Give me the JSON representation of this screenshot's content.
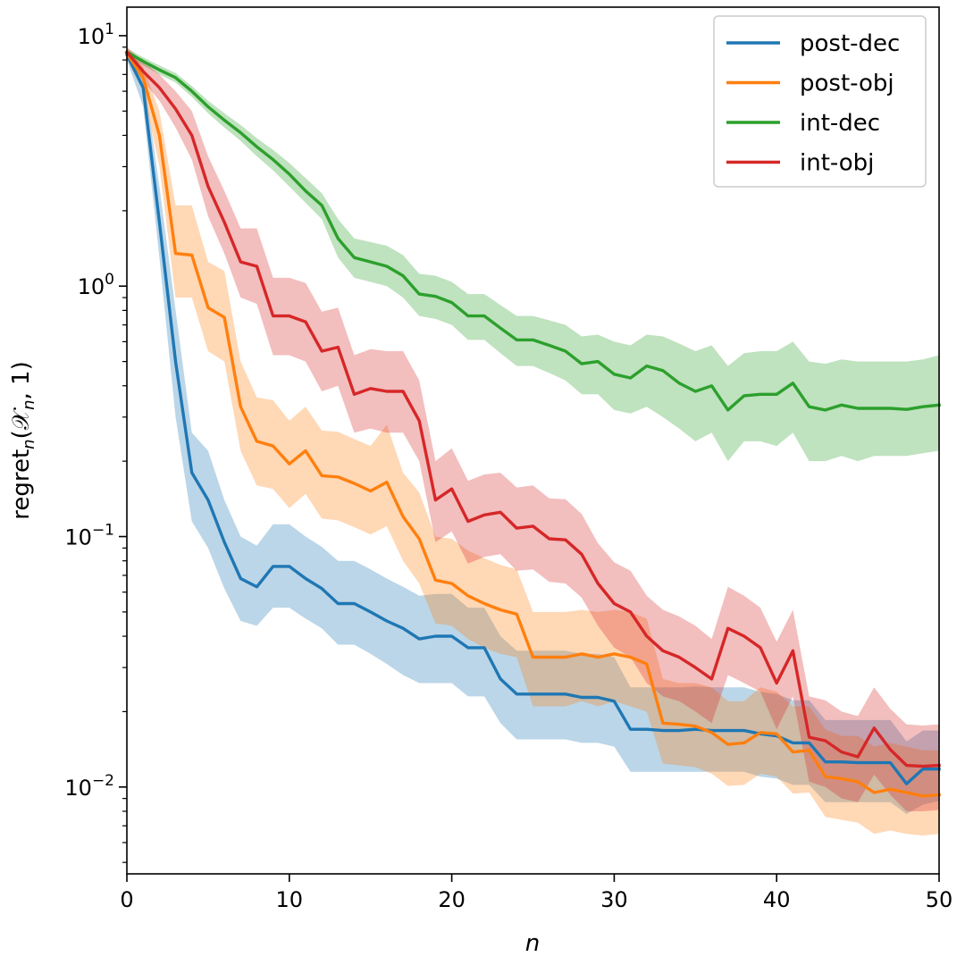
{
  "chart_data": {
    "type": "line",
    "title": "",
    "xlabel": "n",
    "ylabel": {
      "base": "regret",
      "sub": "n",
      "args": "(𝒳",
      "args_sub": "n",
      "tail": ", 1)"
    },
    "xlim": [
      0,
      50
    ],
    "ylim": [
      0.0045,
      13
    ],
    "yscale": "log",
    "grid": false,
    "legend_position": "top-right",
    "xticks": [
      0,
      10,
      20,
      30,
      40,
      50
    ],
    "xtick_labels": [
      "0",
      "10",
      "20",
      "30",
      "40",
      "50"
    ],
    "yticks": [
      0.01,
      0.1,
      1,
      10
    ],
    "ytick_labels": [
      {
        "base": "10",
        "exp": "−2"
      },
      {
        "base": "10",
        "exp": "−1"
      },
      {
        "base": "10",
        "exp": "0"
      },
      {
        "base": "10",
        "exp": "1"
      }
    ],
    "x": [
      0,
      1,
      2,
      3,
      4,
      5,
      6,
      7,
      8,
      9,
      10,
      11,
      12,
      13,
      14,
      15,
      16,
      17,
      18,
      19,
      20,
      21,
      22,
      23,
      24,
      25,
      26,
      27,
      28,
      29,
      30,
      31,
      32,
      33,
      34,
      35,
      36,
      37,
      38,
      39,
      40,
      41,
      42,
      43,
      44,
      45,
      46,
      47,
      48,
      49,
      50
    ],
    "series": [
      {
        "name": "post-dec",
        "color": "#1f77b4",
        "values": [
          8.4,
          6.2,
          1.8,
          0.5,
          0.18,
          0.14,
          0.095,
          0.068,
          0.063,
          0.076,
          0.076,
          0.068,
          0.062,
          0.054,
          0.054,
          0.05,
          0.046,
          0.043,
          0.039,
          0.04,
          0.04,
          0.036,
          0.036,
          0.027,
          0.0235,
          0.0235,
          0.0235,
          0.0235,
          0.0228,
          0.0228,
          0.022,
          0.017,
          0.017,
          0.0168,
          0.0168,
          0.017,
          0.0168,
          0.0168,
          0.0168,
          0.0163,
          0.016,
          0.015,
          0.015,
          0.0126,
          0.0126,
          0.0125,
          0.0125,
          0.0125,
          0.0103,
          0.0118,
          0.0118
        ],
        "lower": [
          8.0,
          5.2,
          1.3,
          0.3,
          0.115,
          0.09,
          0.062,
          0.046,
          0.044,
          0.052,
          0.052,
          0.047,
          0.043,
          0.037,
          0.037,
          0.034,
          0.031,
          0.028,
          0.026,
          0.026,
          0.026,
          0.023,
          0.023,
          0.018,
          0.0155,
          0.0155,
          0.0155,
          0.0155,
          0.015,
          0.015,
          0.0145,
          0.0115,
          0.0115,
          0.0115,
          0.0115,
          0.0115,
          0.0115,
          0.0115,
          0.0115,
          0.011,
          0.0108,
          0.0102,
          0.0102,
          0.0087,
          0.0087,
          0.0087,
          0.0087,
          0.0087,
          0.0078,
          0.0085,
          0.0088
        ],
        "upper": [
          8.8,
          7.2,
          2.5,
          0.8,
          0.26,
          0.22,
          0.14,
          0.1,
          0.092,
          0.112,
          0.112,
          0.1,
          0.091,
          0.08,
          0.08,
          0.074,
          0.068,
          0.063,
          0.058,
          0.059,
          0.059,
          0.052,
          0.052,
          0.04,
          0.035,
          0.035,
          0.035,
          0.035,
          0.034,
          0.034,
          0.033,
          0.025,
          0.025,
          0.025,
          0.025,
          0.0252,
          0.025,
          0.025,
          0.025,
          0.024,
          0.0235,
          0.0222,
          0.0222,
          0.0185,
          0.0185,
          0.0185,
          0.0185,
          0.0185,
          0.0152,
          0.0168,
          0.0168
        ]
      },
      {
        "name": "post-obj",
        "color": "#ff7f0e",
        "values": [
          8.5,
          6.8,
          4.0,
          1.35,
          1.33,
          0.82,
          0.75,
          0.33,
          0.24,
          0.23,
          0.195,
          0.22,
          0.175,
          0.173,
          0.163,
          0.152,
          0.165,
          0.12,
          0.098,
          0.067,
          0.065,
          0.058,
          0.054,
          0.051,
          0.049,
          0.033,
          0.033,
          0.033,
          0.034,
          0.033,
          0.034,
          0.033,
          0.031,
          0.018,
          0.0178,
          0.0175,
          0.0165,
          0.0148,
          0.015,
          0.0165,
          0.0163,
          0.0138,
          0.014,
          0.011,
          0.0108,
          0.0105,
          0.0095,
          0.0098,
          0.0095,
          0.0092,
          0.0093
        ],
        "lower": [
          8.1,
          6.0,
          3.0,
          0.9,
          0.9,
          0.55,
          0.5,
          0.22,
          0.16,
          0.155,
          0.13,
          0.148,
          0.118,
          0.116,
          0.109,
          0.102,
          0.11,
          0.08,
          0.065,
          0.045,
          0.044,
          0.039,
          0.036,
          0.034,
          0.033,
          0.021,
          0.021,
          0.021,
          0.022,
          0.021,
          0.022,
          0.021,
          0.02,
          0.0124,
          0.0122,
          0.012,
          0.0113,
          0.0101,
          0.0102,
          0.0113,
          0.011,
          0.0094,
          0.0095,
          0.0076,
          0.0074,
          0.0072,
          0.0065,
          0.0067,
          0.0065,
          0.0064,
          0.0065
        ],
        "upper": [
          8.9,
          7.5,
          5.0,
          2.1,
          2.1,
          1.25,
          1.15,
          0.5,
          0.36,
          0.35,
          0.29,
          0.33,
          0.265,
          0.262,
          0.245,
          0.23,
          0.28,
          0.18,
          0.15,
          0.1,
          0.098,
          0.088,
          0.082,
          0.077,
          0.074,
          0.05,
          0.05,
          0.05,
          0.051,
          0.05,
          0.051,
          0.05,
          0.047,
          0.027,
          0.026,
          0.026,
          0.025,
          0.022,
          0.022,
          0.025,
          0.024,
          0.021,
          0.021,
          0.017,
          0.016,
          0.016,
          0.0145,
          0.015,
          0.0145,
          0.014,
          0.014
        ]
      },
      {
        "name": "int-dec",
        "color": "#2ca02c",
        "values": [
          8.6,
          7.9,
          7.3,
          6.8,
          6.0,
          5.2,
          4.6,
          4.1,
          3.6,
          3.2,
          2.8,
          2.4,
          2.1,
          1.55,
          1.3,
          1.25,
          1.2,
          1.1,
          0.93,
          0.91,
          0.86,
          0.76,
          0.76,
          0.68,
          0.61,
          0.61,
          0.58,
          0.55,
          0.49,
          0.5,
          0.445,
          0.43,
          0.48,
          0.46,
          0.41,
          0.38,
          0.4,
          0.32,
          0.365,
          0.37,
          0.37,
          0.41,
          0.33,
          0.32,
          0.335,
          0.325,
          0.325,
          0.325,
          0.322,
          0.33,
          0.335
        ],
        "lower": [
          8.3,
          7.6,
          7.0,
          6.5,
          5.7,
          4.9,
          4.3,
          3.8,
          3.3,
          2.9,
          2.5,
          2.15,
          1.85,
          1.3,
          1.08,
          1.04,
          1.0,
          0.9,
          0.76,
          0.74,
          0.7,
          0.61,
          0.61,
          0.54,
          0.48,
          0.48,
          0.45,
          0.42,
          0.37,
          0.37,
          0.32,
          0.31,
          0.33,
          0.3,
          0.27,
          0.24,
          0.26,
          0.2,
          0.24,
          0.24,
          0.23,
          0.26,
          0.2,
          0.2,
          0.21,
          0.2,
          0.21,
          0.21,
          0.21,
          0.215,
          0.22
        ],
        "upper": [
          8.9,
          8.2,
          7.6,
          7.1,
          6.3,
          5.5,
          4.9,
          4.4,
          3.9,
          3.5,
          3.1,
          2.7,
          2.35,
          1.85,
          1.55,
          1.5,
          1.45,
          1.33,
          1.12,
          1.1,
          1.04,
          0.93,
          0.93,
          0.84,
          0.76,
          0.76,
          0.73,
          0.7,
          0.63,
          0.64,
          0.6,
          0.58,
          0.64,
          0.63,
          0.59,
          0.55,
          0.58,
          0.48,
          0.54,
          0.55,
          0.55,
          0.6,
          0.5,
          0.49,
          0.51,
          0.5,
          0.5,
          0.5,
          0.5,
          0.51,
          0.53
        ]
      },
      {
        "name": "int-obj",
        "color": "#d62728",
        "values": [
          8.6,
          7.2,
          6.2,
          5.1,
          4.0,
          2.5,
          1.8,
          1.25,
          1.2,
          0.76,
          0.76,
          0.72,
          0.55,
          0.57,
          0.37,
          0.39,
          0.38,
          0.38,
          0.29,
          0.14,
          0.155,
          0.115,
          0.122,
          0.125,
          0.108,
          0.11,
          0.098,
          0.097,
          0.085,
          0.065,
          0.054,
          0.05,
          0.04,
          0.035,
          0.033,
          0.03,
          0.027,
          0.043,
          0.04,
          0.036,
          0.026,
          0.035,
          0.0158,
          0.0153,
          0.0138,
          0.0132,
          0.0172,
          0.0141,
          0.0122,
          0.0121,
          0.0122
        ],
        "lower": [
          8.2,
          6.6,
          5.5,
          4.3,
          3.2,
          1.9,
          1.35,
          0.9,
          0.85,
          0.53,
          0.53,
          0.5,
          0.38,
          0.4,
          0.26,
          0.27,
          0.26,
          0.26,
          0.2,
          0.095,
          0.105,
          0.078,
          0.083,
          0.085,
          0.073,
          0.074,
          0.066,
          0.065,
          0.057,
          0.044,
          0.036,
          0.033,
          0.026,
          0.023,
          0.022,
          0.02,
          0.018,
          0.028,
          0.026,
          0.024,
          0.017,
          0.023,
          0.0105,
          0.01,
          0.009,
          0.0087,
          0.0112,
          0.0093,
          0.008,
          0.008,
          0.0081
        ],
        "upper": [
          9.0,
          7.9,
          7.0,
          6.0,
          5.0,
          3.3,
          2.4,
          1.7,
          1.7,
          1.08,
          1.08,
          1.03,
          0.79,
          0.82,
          0.53,
          0.56,
          0.55,
          0.55,
          0.42,
          0.2,
          0.225,
          0.167,
          0.177,
          0.18,
          0.157,
          0.16,
          0.142,
          0.141,
          0.123,
          0.094,
          0.079,
          0.073,
          0.058,
          0.051,
          0.048,
          0.044,
          0.039,
          0.063,
          0.058,
          0.052,
          0.038,
          0.051,
          0.023,
          0.0222,
          0.02,
          0.0192,
          0.025,
          0.0205,
          0.0178,
          0.0176,
          0.0178
        ]
      }
    ]
  }
}
